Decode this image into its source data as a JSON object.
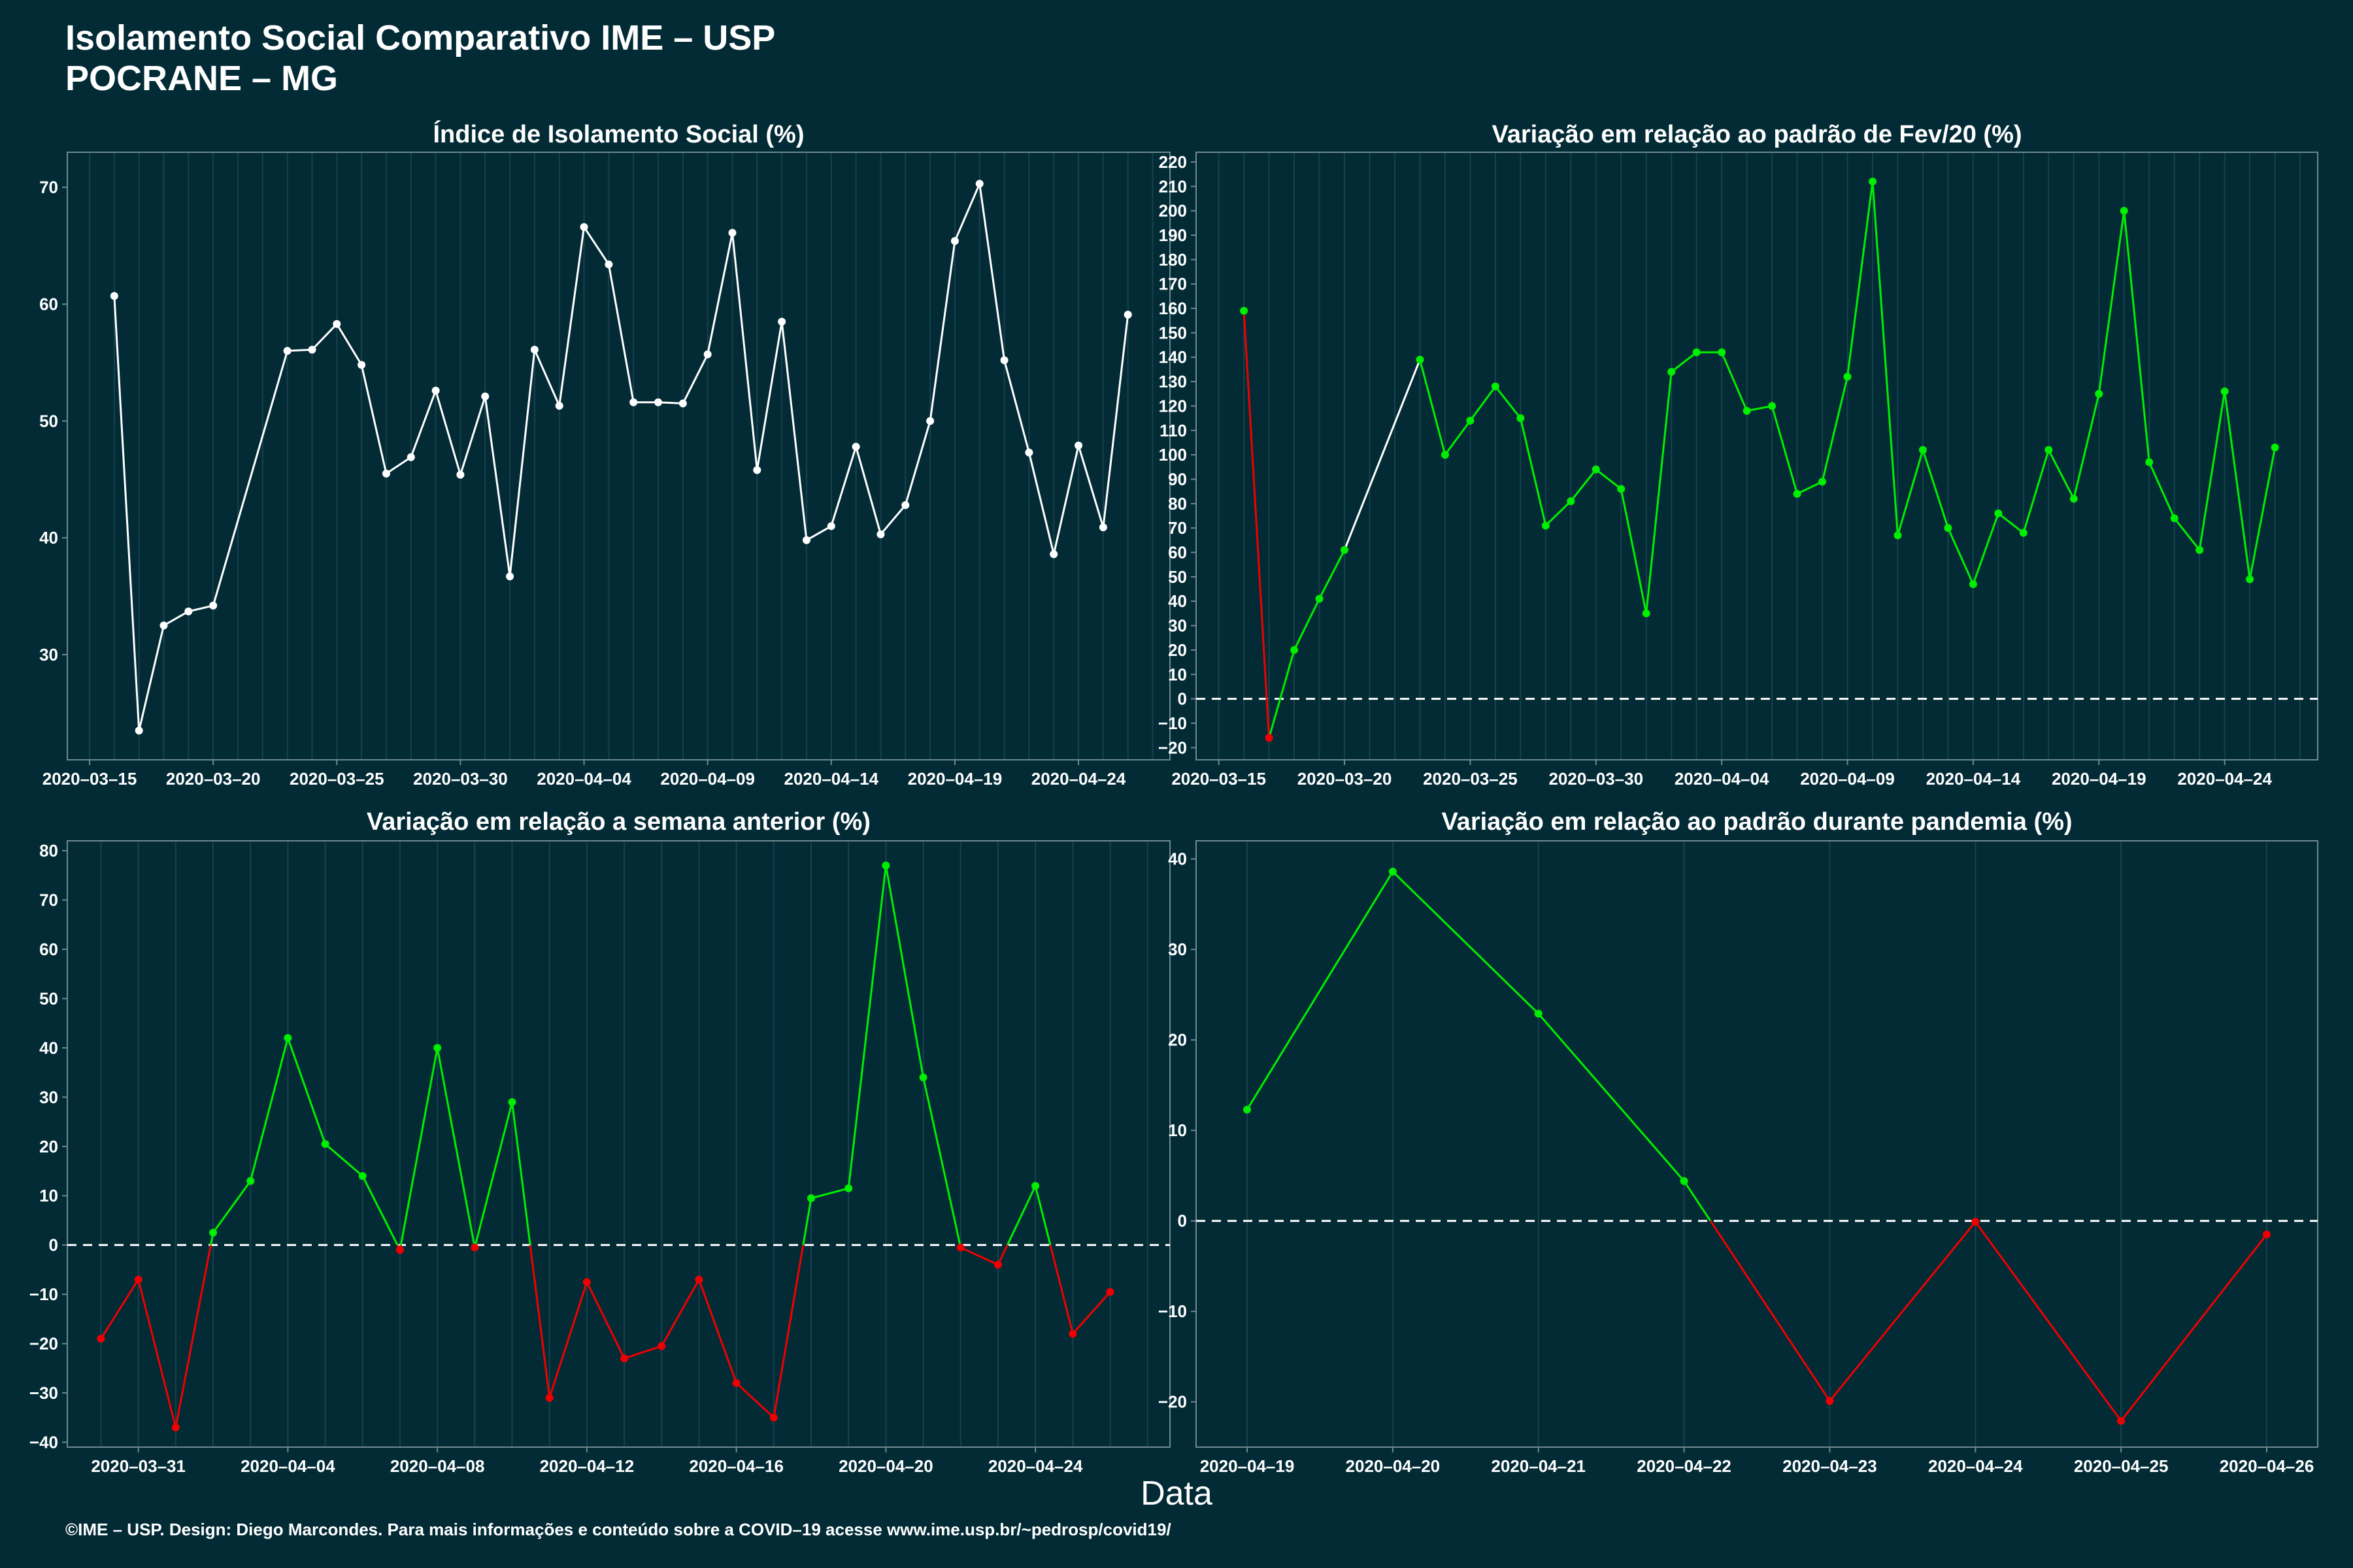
{
  "header": {
    "title_line1": "Isolamento Social Comparativo IME – USP",
    "title_line2": "POCRANE – MG"
  },
  "footer": "©IME – USP. Design: Diego Marcondes. Para mais informações e conteúdo sobre a COVID–19 acesse www.ime.usp.br/~pedrosp/covid19/",
  "x_axis_title": "Data",
  "colors": {
    "background": "#022b36",
    "line_default": "#ffffff",
    "positive": "#00ee00",
    "negative": "#ee0000",
    "grid": "#17424c",
    "axis": "#6f8a90"
  },
  "chart_data": [
    {
      "id": "isolamento",
      "type": "line",
      "title": "Índice de Isolamento Social (%)",
      "colored": false,
      "zero_line": false,
      "x_start": "2020-03-16",
      "x_range": [
        -1.9,
        42.7
      ],
      "ylim": [
        21,
        73
      ],
      "yticks": [
        30,
        40,
        50,
        60,
        70
      ],
      "ytick_labels": [
        "30",
        "40",
        "50",
        "60",
        "70"
      ],
      "xticks": [
        -1,
        4,
        9,
        14,
        19,
        24,
        29,
        34,
        39
      ],
      "xtick_labels": [
        "2020–03–15",
        "2020–03–20",
        "2020–03–25",
        "2020–03–30",
        "2020–04–04",
        "2020–04–09",
        "2020–04–14",
        "2020–04–19",
        "2020–04–24"
      ],
      "x": [
        0,
        1,
        2,
        3,
        4,
        7,
        8,
        9,
        10,
        11,
        12,
        13,
        14,
        15,
        16,
        17,
        18,
        19,
        20,
        21,
        22,
        23,
        24,
        25,
        26,
        27,
        28,
        29,
        30,
        31,
        32,
        33,
        34,
        35,
        36,
        37,
        38,
        39,
        40,
        41
      ],
      "y": [
        60.7,
        23.5,
        32.5,
        33.7,
        34.2,
        56.0,
        56.1,
        58.3,
        54.8,
        45.5,
        46.9,
        52.6,
        45.4,
        52.1,
        36.7,
        56.1,
        51.3,
        66.6,
        63.4,
        51.6,
        51.6,
        51.5,
        55.7,
        66.1,
        45.8,
        58.5,
        39.8,
        41.0,
        47.8,
        40.3,
        42.8,
        50.0,
        65.4,
        70.3,
        55.2,
        47.3,
        38.6,
        47.9,
        40.9,
        59.1
      ]
    },
    {
      "id": "fev20",
      "type": "line",
      "title": "Variação em relação ao padrão de Fev/20 (%)",
      "colored": true,
      "zero_line": true,
      "x_start": "2020-03-16",
      "x_range": [
        -1.9,
        42.7
      ],
      "ylim": [
        -25,
        224
      ],
      "yticks": [
        -20,
        -10,
        0,
        10,
        20,
        30,
        40,
        50,
        60,
        70,
        80,
        90,
        100,
        110,
        120,
        130,
        140,
        150,
        160,
        170,
        180,
        190,
        200,
        210,
        220
      ],
      "ytick_labels": [
        "−20",
        "−10",
        "0",
        "10",
        "20",
        "30",
        "40",
        "50",
        "60",
        "70",
        "80",
        "90",
        "100",
        "110",
        "120",
        "130",
        "140",
        "150",
        "160",
        "170",
        "180",
        "190",
        "200",
        "210",
        "220"
      ],
      "xticks": [
        -1,
        4,
        9,
        14,
        19,
        24,
        29,
        34,
        39
      ],
      "xtick_labels": [
        "2020–03–15",
        "2020–03–20",
        "2020–03–25",
        "2020–03–30",
        "2020–04–04",
        "2020–04–09",
        "2020–04–14",
        "2020–04–19",
        "2020–04–24"
      ],
      "x": [
        0,
        1,
        2,
        3,
        4,
        7,
        8,
        9,
        10,
        11,
        12,
        13,
        14,
        15,
        16,
        17,
        18,
        19,
        20,
        21,
        22,
        23,
        24,
        25,
        26,
        27,
        28,
        29,
        30,
        31,
        32,
        33,
        34,
        35,
        36,
        37,
        38,
        39,
        40,
        41
      ],
      "y": [
        159,
        -16,
        20,
        41,
        61,
        139,
        100,
        114,
        128,
        115,
        71,
        81,
        94,
        86,
        35,
        134,
        142,
        142,
        118,
        120,
        84,
        89,
        132,
        212,
        67,
        102,
        70,
        47,
        76,
        68,
        102,
        82,
        125,
        200,
        97,
        74,
        61,
        126,
        49,
        103
      ],
      "segment_colors": [
        "negative",
        "positive",
        "positive",
        "positive",
        "default",
        "positive",
        "positive",
        "positive",
        "positive",
        "positive",
        "positive",
        "positive",
        "positive",
        "positive",
        "positive",
        "positive",
        "positive",
        "positive",
        "positive",
        "positive",
        "positive",
        "positive",
        "positive",
        "positive",
        "positive",
        "positive",
        "positive",
        "positive",
        "positive",
        "positive",
        "positive",
        "positive",
        "positive",
        "positive",
        "positive",
        "positive",
        "positive",
        "positive",
        "positive"
      ]
    },
    {
      "id": "semana",
      "type": "line",
      "title": "Variação em relação a semana anterior (%)",
      "colored": true,
      "zero_line": true,
      "x_start": "2020-03-30",
      "x_range": [
        -0.9,
        28.6
      ],
      "ylim": [
        -41,
        82
      ],
      "yticks": [
        -40,
        -30,
        -20,
        -10,
        0,
        10,
        20,
        30,
        40,
        50,
        60,
        70,
        80
      ],
      "ytick_labels": [
        "−40",
        "−30",
        "−20",
        "−10",
        "0",
        "10",
        "20",
        "30",
        "40",
        "50",
        "60",
        "70",
        "80"
      ],
      "xticks": [
        1,
        5,
        9,
        13,
        17,
        21,
        25
      ],
      "xtick_labels": [
        "2020–03–31",
        "2020–04–04",
        "2020–04–08",
        "2020–04–12",
        "2020–04–16",
        "2020–04–20",
        "2020–04–24"
      ],
      "x": [
        0,
        1,
        2,
        3,
        4,
        5,
        6,
        7,
        8,
        9,
        10,
        11,
        12,
        13,
        14,
        15,
        16,
        17,
        18,
        19,
        20,
        21,
        22,
        23,
        24,
        25,
        26,
        27
      ],
      "y": [
        -19,
        -7,
        -37,
        2.5,
        13,
        42,
        20.5,
        14,
        -1,
        40,
        -0.5,
        29,
        -31,
        -7.5,
        -23,
        -20.5,
        -7,
        -28,
        -35,
        9.5,
        11.5,
        77,
        34,
        -0.5,
        -4,
        12,
        -18,
        -9.5
      ]
    },
    {
      "id": "pandemia",
      "type": "line",
      "title": "Variação em relação ao padrão durante pandemia (%)",
      "colored": true,
      "zero_line": true,
      "x_start": "2020-04-19",
      "x_range": [
        -0.35,
        7.35
      ],
      "ylim": [
        -25,
        42
      ],
      "yticks": [
        -20,
        -10,
        0,
        10,
        20,
        30,
        40
      ],
      "ytick_labels": [
        "−20",
        "−10",
        "0",
        "10",
        "20",
        "30",
        "40"
      ],
      "xticks": [
        0,
        1,
        2,
        3,
        4,
        5,
        6,
        7
      ],
      "xtick_labels": [
        "2020–04–19",
        "2020–04–20",
        "2020–04–21",
        "2020–04–22",
        "2020–04–23",
        "2020–04–24",
        "2020–04–25",
        "2020–04–26"
      ],
      "x": [
        0,
        1,
        2,
        3,
        4,
        5,
        6,
        7
      ],
      "y": [
        12.3,
        38.6,
        22.9,
        4.4,
        -19.9,
        -0.1,
        -22.1,
        -1.5
      ]
    }
  ]
}
